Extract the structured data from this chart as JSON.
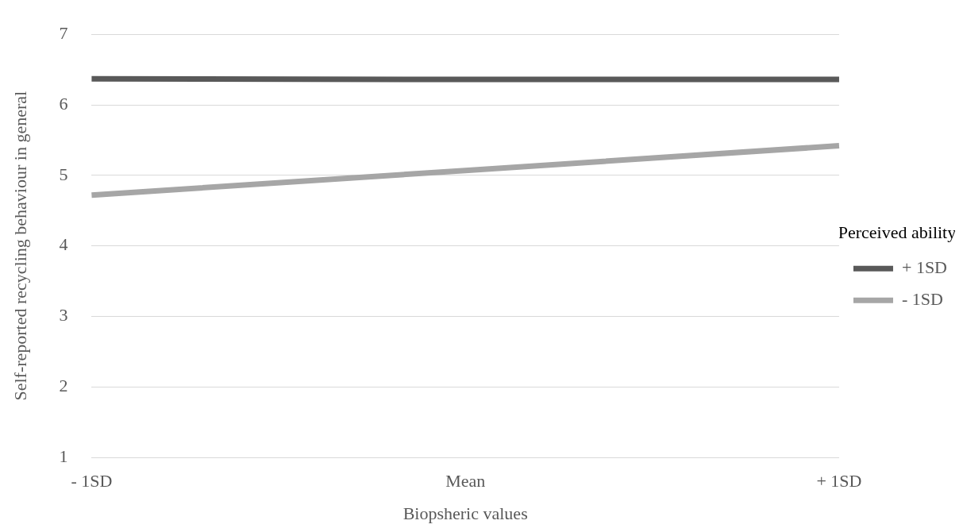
{
  "chart_data": {
    "type": "line",
    "xlabel": "Biopsheric values",
    "ylabel": "Self-reported recycling behaviour in general",
    "legend_title": "Perceived ability",
    "categories": [
      "- 1SD",
      "Mean",
      "+ 1SD"
    ],
    "series": [
      {
        "name": "+ 1SD",
        "color": "#595959",
        "values": [
          6.37,
          6.36,
          6.36
        ]
      },
      {
        "name": "- 1SD",
        "color": "#a6a6a6",
        "values": [
          4.72,
          5.07,
          5.42
        ]
      }
    ],
    "ylim": [
      1,
      7
    ],
    "yticks": [
      1,
      2,
      3,
      4,
      5,
      6,
      7
    ],
    "grid": "y",
    "legend": "right",
    "marker": "none",
    "line_style": "solid"
  }
}
